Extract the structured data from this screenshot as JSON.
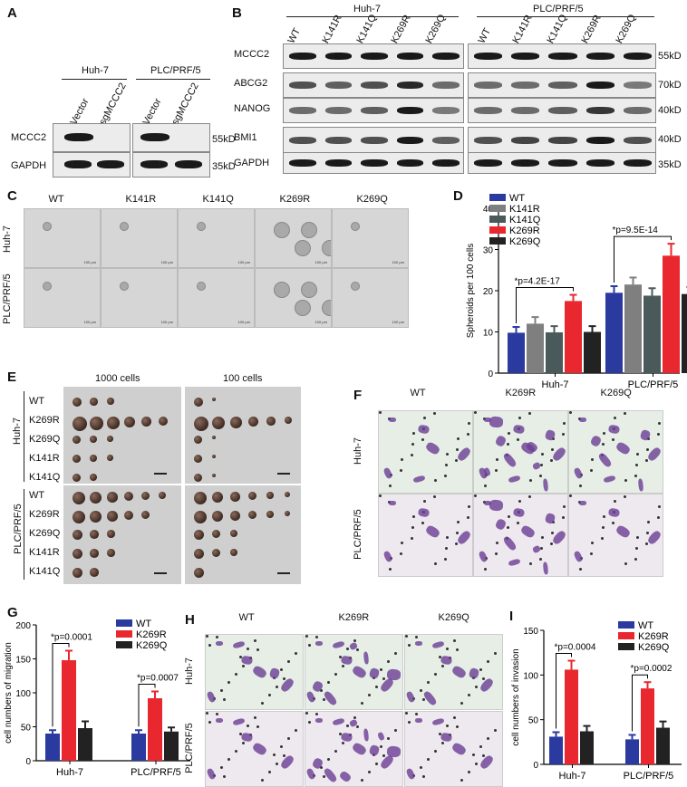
{
  "panels": {
    "A": "A",
    "B": "B",
    "C": "C",
    "D": "D",
    "E": "E",
    "F": "F",
    "G": "G",
    "H": "H",
    "I": "I"
  },
  "panelA": {
    "groups": [
      "Huh-7",
      "PLC/PRF/5"
    ],
    "lanes": [
      "Vector",
      "sgMCCC2",
      "Vector",
      "sgMCCC2"
    ],
    "rows": [
      "MCCC2",
      "GAPDH"
    ],
    "markers": [
      "55kD",
      "35kD"
    ]
  },
  "panelB": {
    "groups": [
      "Huh-7",
      "PLC/PRF/5"
    ],
    "lanes": [
      "WT",
      "K141R",
      "K141Q",
      "K269R",
      "K269Q",
      "WT",
      "K141R",
      "K141Q",
      "K269R",
      "K269Q"
    ],
    "rows": [
      "MCCC2",
      "ABCG2",
      "NANOG",
      "BMI1",
      "GAPDH"
    ],
    "markers": [
      "55kD",
      "70kD",
      "40kD",
      "40kD",
      "35kD"
    ]
  },
  "panelC": {
    "columns": [
      "WT",
      "K141R",
      "K141Q",
      "K269R",
      "K269Q"
    ],
    "rows": [
      "Huh-7",
      "PLC/PRF/5"
    ],
    "scale": "100 μm"
  },
  "panelE": {
    "headers": [
      "1000 cells",
      "100 cells"
    ],
    "groups": [
      "Huh-7",
      "PLC/PRF/5"
    ],
    "rows_top": [
      "WT",
      "K269R",
      "K269Q",
      "K141R",
      "K141Q"
    ],
    "rows_bottom": [
      "WT",
      "K269R",
      "K269Q",
      "K141R",
      "K141Q"
    ]
  },
  "panelF": {
    "columns": [
      "WT",
      "K269R",
      "K269Q"
    ],
    "rows": [
      "Huh-7",
      "PLC/PRF/5"
    ]
  },
  "panelH": {
    "columns": [
      "WT",
      "K269R",
      "K269Q"
    ],
    "rows": [
      "Huh-7",
      "PLC/PRF/5"
    ]
  },
  "colors": {
    "WT": "#2b3a9e",
    "K141R": "#7f7f7f",
    "K141Q": "#4a5a5a",
    "K269R": "#e8282e",
    "K269Q": "#222222"
  },
  "chart_data": [
    {
      "id": "D",
      "type": "bar",
      "categories": [
        "Huh-7",
        "PLC/PRF/5"
      ],
      "series": [
        {
          "name": "WT",
          "values": [
            9.8,
            19.5
          ],
          "err": [
            1.4,
            1.6
          ]
        },
        {
          "name": "K141R",
          "values": [
            12.0,
            21.5
          ],
          "err": [
            1.6,
            1.7
          ]
        },
        {
          "name": "K141Q",
          "values": [
            9.9,
            18.8
          ],
          "err": [
            1.5,
            1.8
          ]
        },
        {
          "name": "K269R",
          "values": [
            17.5,
            28.5
          ],
          "err": [
            1.5,
            2.9
          ]
        },
        {
          "name": "K269Q",
          "values": [
            10.0,
            19.2
          ],
          "err": [
            1.4,
            1.7
          ]
        }
      ],
      "ylabel": "Spheroids per 100 cells",
      "ylim": [
        0,
        40
      ],
      "yticks": [
        0,
        10,
        20,
        30,
        40
      ],
      "annotations": [
        "*p=4.2E-17",
        "*p=9.5E-14"
      ]
    },
    {
      "id": "G",
      "type": "bar",
      "categories": [
        "Huh-7",
        "PLC/PRF/5"
      ],
      "series": [
        {
          "name": "WT",
          "values": [
            40,
            40
          ],
          "err": [
            5,
            5
          ]
        },
        {
          "name": "K269R",
          "values": [
            148,
            92
          ],
          "err": [
            14,
            10
          ]
        },
        {
          "name": "K269Q",
          "values": [
            48,
            43
          ],
          "err": [
            10,
            6
          ]
        }
      ],
      "ylabel": "cell numbers of migration",
      "ylim": [
        0,
        200
      ],
      "yticks": [
        0,
        50,
        100,
        150,
        200
      ],
      "annotations": [
        "*p=0.0001",
        "*p=0.0007"
      ]
    },
    {
      "id": "I",
      "type": "bar",
      "categories": [
        "Huh-7",
        "PLC/PRF/5"
      ],
      "series": [
        {
          "name": "WT",
          "values": [
            31,
            28
          ],
          "err": [
            5,
            5
          ]
        },
        {
          "name": "K269R",
          "values": [
            106,
            85
          ],
          "err": [
            10,
            7
          ]
        },
        {
          "name": "K269Q",
          "values": [
            37,
            41
          ],
          "err": [
            6,
            7
          ]
        }
      ],
      "ylabel": "cell numbers of invasion",
      "ylim": [
        0,
        150
      ],
      "yticks": [
        0,
        50,
        100,
        150
      ],
      "annotations": [
        "*p=0.0004",
        "*p=0.0002"
      ]
    }
  ]
}
